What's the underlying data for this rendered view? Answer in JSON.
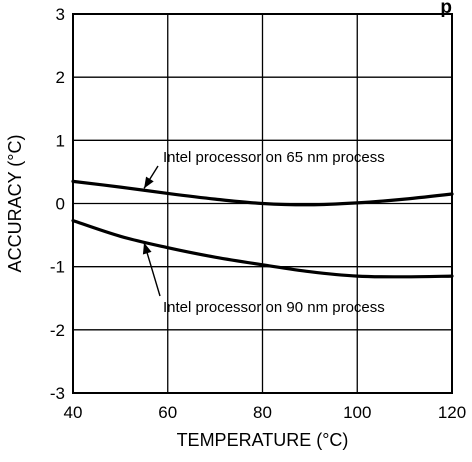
{
  "chart_data": {
    "type": "line",
    "title": "",
    "title_fragment": "p",
    "xlabel": "TEMPERATURE (°C)",
    "ylabel": "ACCURACY (°C)",
    "xlim": [
      40,
      120
    ],
    "ylim": [
      -3,
      3
    ],
    "x_ticks": [
      40,
      60,
      80,
      100,
      120
    ],
    "y_ticks": [
      -3,
      -2,
      -1,
      0,
      1,
      2,
      3
    ],
    "grid": true,
    "series": [
      {
        "name": "Intel processor on 65 nm process",
        "x": [
          40,
          50,
          60,
          70,
          80,
          90,
          100,
          110,
          120
        ],
        "y": [
          0.35,
          0.26,
          0.16,
          0.07,
          0.0,
          -0.02,
          0.01,
          0.07,
          0.15
        ]
      },
      {
        "name": "Intel processor on 90 nm process",
        "x": [
          40,
          50,
          60,
          70,
          80,
          90,
          100,
          110,
          120
        ],
        "y": [
          -0.27,
          -0.52,
          -0.7,
          -0.85,
          -0.97,
          -1.08,
          -1.15,
          -1.16,
          -1.15
        ]
      }
    ],
    "annotations": [
      {
        "text": "Intel processor on 65 nm process",
        "series": 0,
        "arrow_to": [
          55,
          0.24
        ]
      },
      {
        "text": "Intel processor on 90 nm process",
        "series": 1,
        "arrow_to": [
          55,
          -0.62
        ]
      }
    ]
  }
}
